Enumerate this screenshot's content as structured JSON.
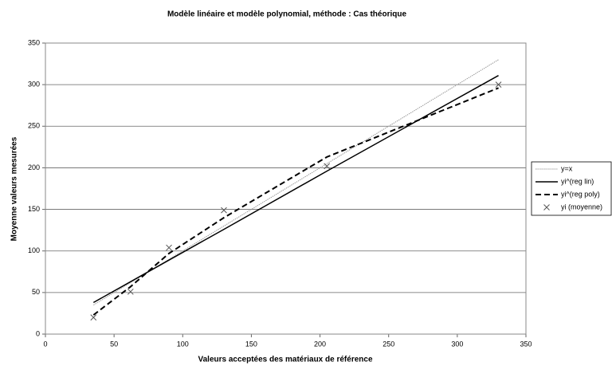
{
  "chart_data": {
    "type": "line",
    "title": "Modèle linéaire et modèle polynomial, méthode : Cas théorique",
    "xlabel": "Valeurs acceptées des matériaux de référence",
    "ylabel": "Moyenne valeurs mesurées",
    "x": [
      35,
      62,
      90,
      130,
      205,
      330
    ],
    "series": [
      {
        "name": "y=x",
        "color": "#999999",
        "style": "dotted",
        "values": [
          35,
          62,
          90,
          130,
          205,
          330
        ]
      },
      {
        "name": "yi^(reg lin)",
        "color": "#000000",
        "style": "solid",
        "values": [
          38,
          63,
          89,
          126,
          196,
          311
        ]
      },
      {
        "name": "yi^(reg poly)",
        "color": "#000000",
        "style": "dashed",
        "values": [
          23,
          57,
          97,
          140,
          213,
          296
        ]
      },
      {
        "name": "yi (moyenne)",
        "color": "#555555",
        "style": "marker",
        "values": [
          20,
          51,
          104,
          149,
          202,
          300
        ]
      }
    ],
    "xlim": [
      0,
      350
    ],
    "xticks": [
      0,
      50,
      100,
      150,
      200,
      250,
      300,
      350
    ],
    "ylim": [
      0,
      350
    ],
    "yticks": [
      0,
      50,
      100,
      150,
      200,
      250,
      300,
      350
    ],
    "grid": true,
    "legend": "right"
  }
}
